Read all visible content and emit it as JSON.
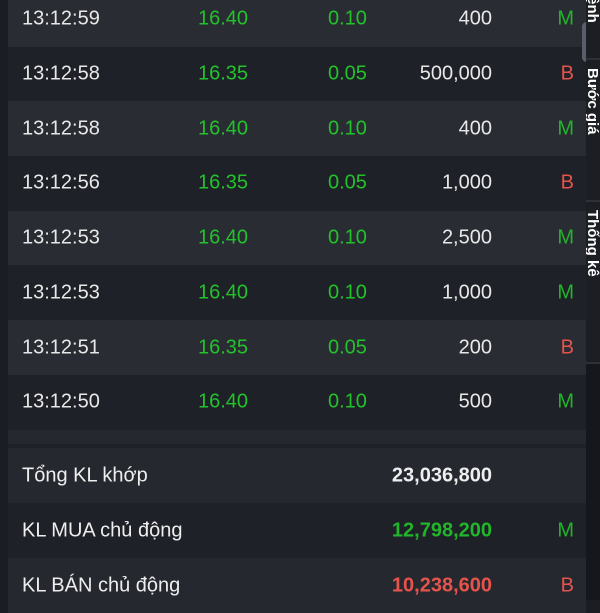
{
  "trades": [
    {
      "time": "13:12:59",
      "price": "16.40",
      "change": "0.10",
      "volume": "400",
      "side": "M"
    },
    {
      "time": "13:12:58",
      "price": "16.35",
      "change": "0.05",
      "volume": "500,000",
      "side": "B"
    },
    {
      "time": "13:12:58",
      "price": "16.40",
      "change": "0.10",
      "volume": "400",
      "side": "M"
    },
    {
      "time": "13:12:56",
      "price": "16.35",
      "change": "0.05",
      "volume": "1,000",
      "side": "B"
    },
    {
      "time": "13:12:53",
      "price": "16.40",
      "change": "0.10",
      "volume": "2,500",
      "side": "M"
    },
    {
      "time": "13:12:53",
      "price": "16.40",
      "change": "0.10",
      "volume": "1,000",
      "side": "M"
    },
    {
      "time": "13:12:51",
      "price": "16.35",
      "change": "0.05",
      "volume": "200",
      "side": "B"
    },
    {
      "time": "13:12:50",
      "price": "16.40",
      "change": "0.10",
      "volume": "500",
      "side": "M"
    }
  ],
  "summary": [
    {
      "label": "Tổng KL khớp",
      "value": "23,036,800",
      "side": ""
    },
    {
      "label": "KL MUA chủ động",
      "value": "12,798,200",
      "side": "M"
    },
    {
      "label": "KL BÁN chủ động",
      "value": "10,238,600",
      "side": "B"
    }
  ],
  "tabs": [
    "Khớp lệnh",
    "Bước giá",
    "Thống kê"
  ],
  "colors": {
    "buy": "#22b52a",
    "sell": "#e5534b",
    "background": "#1f2128"
  }
}
